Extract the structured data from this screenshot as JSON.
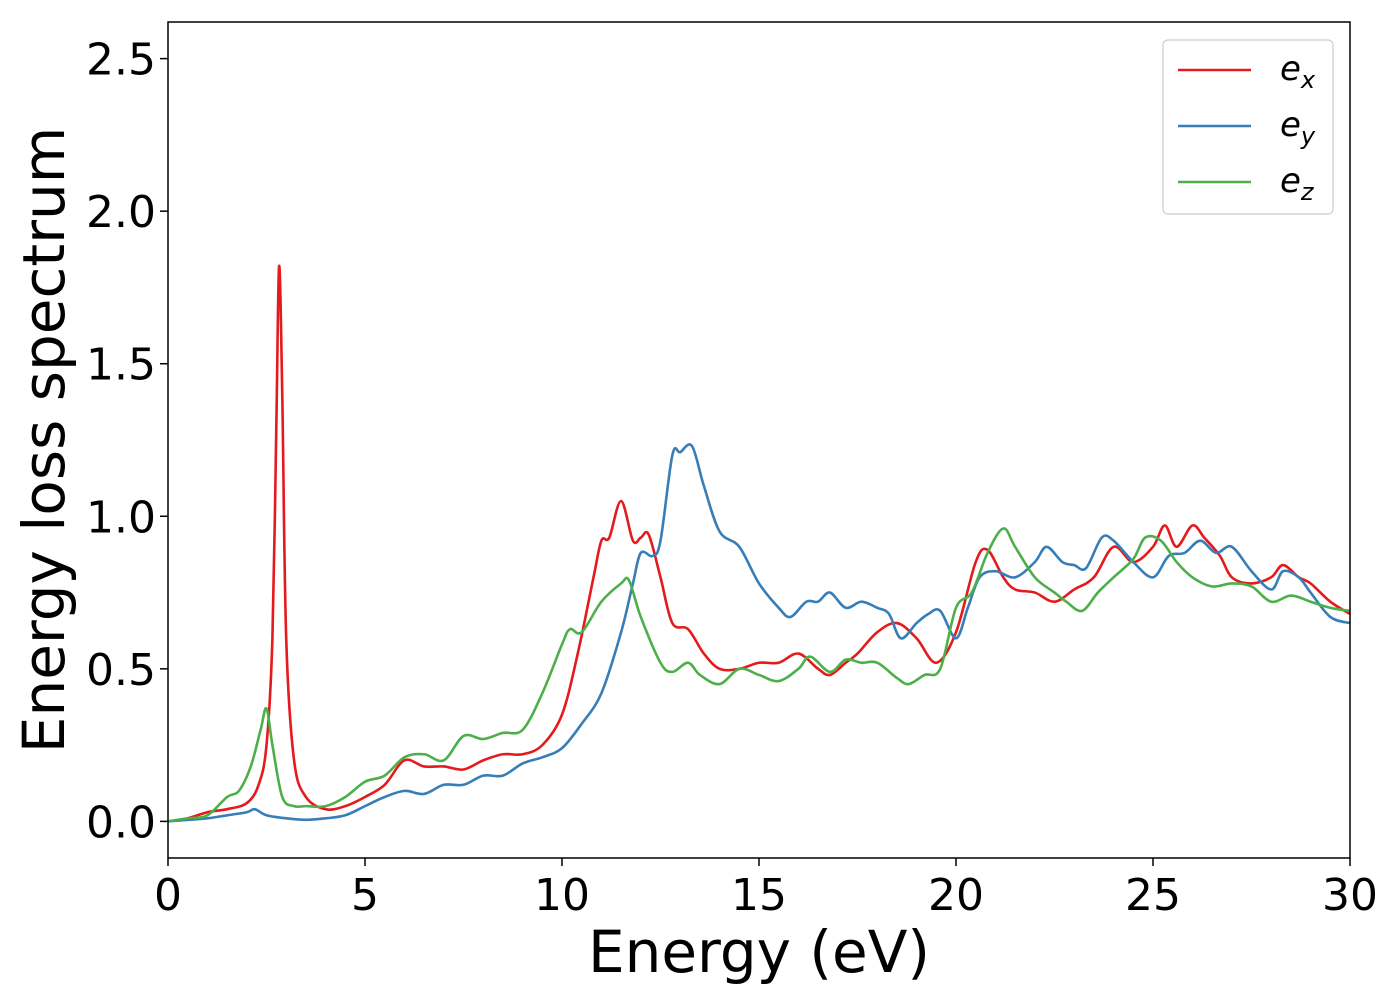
{
  "chart_data": {
    "type": "line",
    "title": "",
    "xlabel": "Energy (eV)",
    "ylabel": "Energy loss spectrum",
    "xlim": [
      0,
      30
    ],
    "ylim": [
      -0.12,
      2.62
    ],
    "xticks": [
      0,
      5,
      10,
      15,
      20,
      25,
      30
    ],
    "xtick_labels": [
      "0",
      "5",
      "10",
      "15",
      "20",
      "25",
      "30"
    ],
    "yticks": [
      0.0,
      0.5,
      1.0,
      1.5,
      2.0,
      2.5
    ],
    "ytick_labels": [
      "0.0",
      "0.5",
      "1.0",
      "1.5",
      "2.0",
      "2.5"
    ],
    "grid": false,
    "legend_position": "top-right",
    "series": [
      {
        "name": "e_x",
        "base": "e",
        "sub": "x",
        "color": "#e41a1c",
        "points": [
          [
            0,
            0
          ],
          [
            0.5,
            0.01
          ],
          [
            1.0,
            0.03
          ],
          [
            1.5,
            0.04
          ],
          [
            2.0,
            0.06
          ],
          [
            2.3,
            0.12
          ],
          [
            2.5,
            0.25
          ],
          [
            2.65,
            0.6
          ],
          [
            2.75,
            1.3
          ],
          [
            2.82,
            1.82
          ],
          [
            2.9,
            1.4
          ],
          [
            3.0,
            0.6
          ],
          [
            3.2,
            0.2
          ],
          [
            3.5,
            0.08
          ],
          [
            4.0,
            0.04
          ],
          [
            4.5,
            0.05
          ],
          [
            5.0,
            0.08
          ],
          [
            5.5,
            0.12
          ],
          [
            6.0,
            0.2
          ],
          [
            6.5,
            0.18
          ],
          [
            7.0,
            0.18
          ],
          [
            7.5,
            0.17
          ],
          [
            8.0,
            0.2
          ],
          [
            8.5,
            0.22
          ],
          [
            9.0,
            0.22
          ],
          [
            9.5,
            0.25
          ],
          [
            10.0,
            0.35
          ],
          [
            10.4,
            0.55
          ],
          [
            10.8,
            0.8
          ],
          [
            11.0,
            0.92
          ],
          [
            11.2,
            0.93
          ],
          [
            11.5,
            1.05
          ],
          [
            11.8,
            0.92
          ],
          [
            12.0,
            0.93
          ],
          [
            12.2,
            0.94
          ],
          [
            12.5,
            0.8
          ],
          [
            12.8,
            0.65
          ],
          [
            13.2,
            0.63
          ],
          [
            13.6,
            0.55
          ],
          [
            14.0,
            0.5
          ],
          [
            14.5,
            0.5
          ],
          [
            15.0,
            0.52
          ],
          [
            15.5,
            0.52
          ],
          [
            16.0,
            0.55
          ],
          [
            16.5,
            0.5
          ],
          [
            16.8,
            0.48
          ],
          [
            17.2,
            0.52
          ],
          [
            17.5,
            0.55
          ],
          [
            18.0,
            0.62
          ],
          [
            18.5,
            0.65
          ],
          [
            19.0,
            0.6
          ],
          [
            19.5,
            0.52
          ],
          [
            20.0,
            0.62
          ],
          [
            20.5,
            0.85
          ],
          [
            20.8,
            0.89
          ],
          [
            21.2,
            0.8
          ],
          [
            21.5,
            0.76
          ],
          [
            22.0,
            0.75
          ],
          [
            22.5,
            0.72
          ],
          [
            23.0,
            0.76
          ],
          [
            23.5,
            0.8
          ],
          [
            24.0,
            0.9
          ],
          [
            24.5,
            0.85
          ],
          [
            25.0,
            0.9
          ],
          [
            25.3,
            0.97
          ],
          [
            25.6,
            0.9
          ],
          [
            26.0,
            0.97
          ],
          [
            26.3,
            0.93
          ],
          [
            26.7,
            0.87
          ],
          [
            27.0,
            0.8
          ],
          [
            27.5,
            0.78
          ],
          [
            28.0,
            0.8
          ],
          [
            28.3,
            0.84
          ],
          [
            28.7,
            0.8
          ],
          [
            29.0,
            0.78
          ],
          [
            29.5,
            0.72
          ],
          [
            30.0,
            0.68
          ]
        ]
      },
      {
        "name": "e_y",
        "base": "e",
        "sub": "y",
        "color": "#377eb8",
        "points": [
          [
            0,
            0
          ],
          [
            0.5,
            0.005
          ],
          [
            1.0,
            0.01
          ],
          [
            1.5,
            0.02
          ],
          [
            2.0,
            0.03
          ],
          [
            2.2,
            0.04
          ],
          [
            2.5,
            0.02
          ],
          [
            3.0,
            0.01
          ],
          [
            3.5,
            0.005
          ],
          [
            4.0,
            0.01
          ],
          [
            4.5,
            0.02
          ],
          [
            5.0,
            0.05
          ],
          [
            5.5,
            0.08
          ],
          [
            6.0,
            0.1
          ],
          [
            6.5,
            0.09
          ],
          [
            7.0,
            0.12
          ],
          [
            7.5,
            0.12
          ],
          [
            8.0,
            0.15
          ],
          [
            8.5,
            0.15
          ],
          [
            9.0,
            0.19
          ],
          [
            9.5,
            0.21
          ],
          [
            10.0,
            0.24
          ],
          [
            10.5,
            0.32
          ],
          [
            11.0,
            0.42
          ],
          [
            11.5,
            0.62
          ],
          [
            11.8,
            0.78
          ],
          [
            12.0,
            0.88
          ],
          [
            12.3,
            0.87
          ],
          [
            12.5,
            0.92
          ],
          [
            12.8,
            1.2
          ],
          [
            13.0,
            1.21
          ],
          [
            13.3,
            1.23
          ],
          [
            13.6,
            1.1
          ],
          [
            14.0,
            0.95
          ],
          [
            14.5,
            0.9
          ],
          [
            15.0,
            0.78
          ],
          [
            15.5,
            0.7
          ],
          [
            15.8,
            0.67
          ],
          [
            16.2,
            0.72
          ],
          [
            16.5,
            0.72
          ],
          [
            16.8,
            0.75
          ],
          [
            17.2,
            0.7
          ],
          [
            17.6,
            0.72
          ],
          [
            18.0,
            0.7
          ],
          [
            18.3,
            0.68
          ],
          [
            18.6,
            0.6
          ],
          [
            19.0,
            0.65
          ],
          [
            19.3,
            0.68
          ],
          [
            19.6,
            0.69
          ],
          [
            20.0,
            0.6
          ],
          [
            20.3,
            0.7
          ],
          [
            20.6,
            0.8
          ],
          [
            21.0,
            0.82
          ],
          [
            21.5,
            0.8
          ],
          [
            22.0,
            0.85
          ],
          [
            22.3,
            0.9
          ],
          [
            22.7,
            0.85
          ],
          [
            23.0,
            0.84
          ],
          [
            23.3,
            0.83
          ],
          [
            23.7,
            0.93
          ],
          [
            24.0,
            0.92
          ],
          [
            24.5,
            0.85
          ],
          [
            25.0,
            0.8
          ],
          [
            25.4,
            0.87
          ],
          [
            25.8,
            0.88
          ],
          [
            26.2,
            0.92
          ],
          [
            26.6,
            0.88
          ],
          [
            27.0,
            0.9
          ],
          [
            27.5,
            0.82
          ],
          [
            28.0,
            0.76
          ],
          [
            28.3,
            0.82
          ],
          [
            28.7,
            0.8
          ],
          [
            29.0,
            0.75
          ],
          [
            29.5,
            0.67
          ],
          [
            30.0,
            0.65
          ]
        ]
      },
      {
        "name": "e_z",
        "base": "e",
        "sub": "z",
        "color": "#4daf4a",
        "points": [
          [
            0,
            0
          ],
          [
            0.5,
            0.01
          ],
          [
            1.0,
            0.02
          ],
          [
            1.5,
            0.08
          ],
          [
            1.8,
            0.1
          ],
          [
            2.1,
            0.18
          ],
          [
            2.35,
            0.3
          ],
          [
            2.5,
            0.37
          ],
          [
            2.65,
            0.25
          ],
          [
            2.9,
            0.08
          ],
          [
            3.2,
            0.05
          ],
          [
            3.5,
            0.05
          ],
          [
            4.0,
            0.05
          ],
          [
            4.5,
            0.08
          ],
          [
            5.0,
            0.13
          ],
          [
            5.5,
            0.15
          ],
          [
            6.0,
            0.21
          ],
          [
            6.5,
            0.22
          ],
          [
            7.0,
            0.2
          ],
          [
            7.5,
            0.28
          ],
          [
            8.0,
            0.27
          ],
          [
            8.5,
            0.29
          ],
          [
            9.0,
            0.3
          ],
          [
            9.5,
            0.42
          ],
          [
            10.0,
            0.58
          ],
          [
            10.2,
            0.63
          ],
          [
            10.5,
            0.62
          ],
          [
            11.0,
            0.72
          ],
          [
            11.5,
            0.78
          ],
          [
            11.7,
            0.79
          ],
          [
            12.0,
            0.67
          ],
          [
            12.5,
            0.52
          ],
          [
            12.8,
            0.49
          ],
          [
            13.2,
            0.52
          ],
          [
            13.5,
            0.48
          ],
          [
            14.0,
            0.45
          ],
          [
            14.5,
            0.5
          ],
          [
            15.0,
            0.48
          ],
          [
            15.5,
            0.46
          ],
          [
            16.0,
            0.5
          ],
          [
            16.3,
            0.54
          ],
          [
            16.8,
            0.49
          ],
          [
            17.2,
            0.53
          ],
          [
            17.6,
            0.52
          ],
          [
            18.0,
            0.52
          ],
          [
            18.5,
            0.47
          ],
          [
            18.8,
            0.45
          ],
          [
            19.2,
            0.48
          ],
          [
            19.6,
            0.5
          ],
          [
            20.0,
            0.7
          ],
          [
            20.4,
            0.75
          ],
          [
            20.8,
            0.88
          ],
          [
            21.2,
            0.96
          ],
          [
            21.5,
            0.9
          ],
          [
            22.0,
            0.8
          ],
          [
            22.5,
            0.75
          ],
          [
            22.8,
            0.72
          ],
          [
            23.2,
            0.69
          ],
          [
            23.6,
            0.75
          ],
          [
            24.0,
            0.8
          ],
          [
            24.5,
            0.86
          ],
          [
            24.8,
            0.93
          ],
          [
            25.2,
            0.92
          ],
          [
            25.6,
            0.85
          ],
          [
            26.0,
            0.8
          ],
          [
            26.5,
            0.77
          ],
          [
            27.0,
            0.78
          ],
          [
            27.5,
            0.77
          ],
          [
            28.0,
            0.72
          ],
          [
            28.5,
            0.74
          ],
          [
            29.0,
            0.72
          ],
          [
            29.5,
            0.7
          ],
          [
            30.0,
            0.69
          ]
        ]
      }
    ]
  }
}
